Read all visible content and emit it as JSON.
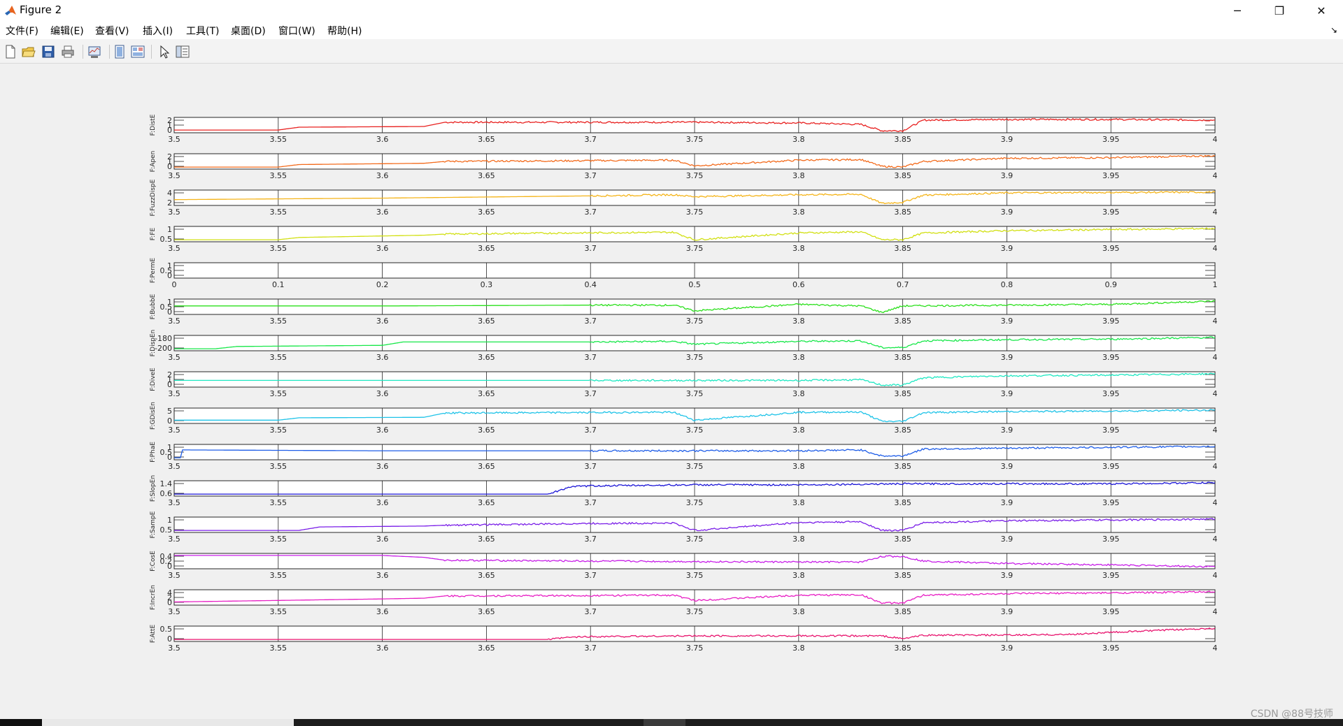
{
  "window": {
    "title": "Figure 2",
    "minimize_glyph": "─",
    "restore_glyph": "❐",
    "close_glyph": "✕",
    "app_icon": "matlab-logo-icon"
  },
  "menu": {
    "items": [
      "文件(F)",
      "编辑(E)",
      "查看(V)",
      "插入(I)",
      "工具(T)",
      "桌面(D)",
      "窗口(W)",
      "帮助(H)"
    ],
    "extra_glyph": "↘"
  },
  "toolbar": {
    "tools": [
      "new-figure-icon",
      "open-file-icon",
      "save-icon",
      "print-icon",
      "link-plot-icon",
      "hide-plot-tools-icon",
      "show-plot-tools-icon",
      "edit-plot-cursor-icon",
      "property-inspector-icon"
    ]
  },
  "colors": {
    "figure_bg": "#f0f0f0",
    "axes_bg": "#ffffff"
  },
  "watermark": "CSDN @88号技师",
  "chart_data": [
    {
      "type": "line",
      "ylabel": "F:DistE",
      "yticks": [
        "2",
        "1",
        "0"
      ],
      "color": "#e8201f",
      "xlim": [
        3.5,
        4
      ],
      "xticks": [
        "3.5",
        "3.55",
        "3.6",
        "3.65",
        "3.7",
        "3.75",
        "3.8",
        "3.85",
        "3.9",
        "3.95",
        "4"
      ],
      "series": [
        {
          "x": [
            3.5,
            3.55,
            3.56,
            3.62,
            3.63,
            3.7,
            3.75,
            3.8,
            3.83,
            3.84,
            3.85,
            3.86,
            3.9,
            3.95,
            4.0
          ],
          "y": [
            0.2,
            0.2,
            0.6,
            0.7,
            1.3,
            1.3,
            1.3,
            1.2,
            1.0,
            0.1,
            0.1,
            1.6,
            1.7,
            1.7,
            1.6
          ]
        }
      ]
    },
    {
      "type": "line",
      "ylabel": "F:Apen",
      "yticks": [
        "2",
        "1",
        "0"
      ],
      "color": "#f36b1c",
      "xlim": [
        3.5,
        4
      ],
      "xticks": [
        "3.5",
        "3.55",
        "3.6",
        "3.65",
        "3.7",
        "3.75",
        "3.8",
        "3.85",
        "3.9",
        "3.95",
        "4"
      ],
      "series": [
        {
          "x": [
            3.5,
            3.55,
            3.56,
            3.62,
            3.63,
            3.69,
            3.74,
            3.75,
            3.8,
            3.83,
            3.84,
            3.85,
            3.86,
            3.9,
            3.95,
            4.0
          ],
          "y": [
            0.1,
            0.1,
            0.5,
            0.7,
            1.0,
            1.1,
            1.2,
            0.3,
            1.2,
            1.3,
            0.2,
            0.1,
            1.0,
            1.5,
            1.6,
            1.9
          ]
        }
      ]
    },
    {
      "type": "line",
      "ylabel": "F:FuzzDispE",
      "yticks": [
        "4",
        "2"
      ],
      "color": "#f5b418",
      "xlim": [
        3.5,
        4
      ],
      "xticks": [
        "3.5",
        "3.55",
        "3.6",
        "3.65",
        "3.7",
        "3.75",
        "3.8",
        "3.85",
        "3.9",
        "3.95",
        "4"
      ],
      "series": [
        {
          "x": [
            3.5,
            3.6,
            3.7,
            3.74,
            3.75,
            3.8,
            3.83,
            3.84,
            3.85,
            3.86,
            3.9,
            3.95,
            4.0
          ],
          "y": [
            2.2,
            2.6,
            3.2,
            3.5,
            3.0,
            3.5,
            3.6,
            1.2,
            1.5,
            3.4,
            4.0,
            4.1,
            4.2
          ]
        }
      ]
    },
    {
      "type": "line",
      "ylabel": "F:FE",
      "yticks": [
        "1",
        "0.5"
      ],
      "color": "#d2e014",
      "xlim": [
        3.5,
        4
      ],
      "xticks": [
        "3.5",
        "3.55",
        "3.6",
        "3.65",
        "3.7",
        "3.75",
        "3.8",
        "3.85",
        "3.9",
        "3.95",
        "4"
      ],
      "series": [
        {
          "x": [
            3.5,
            3.55,
            3.56,
            3.62,
            3.63,
            3.69,
            3.74,
            3.75,
            3.8,
            3.83,
            3.84,
            3.85,
            3.86,
            3.9,
            3.95,
            4.0
          ],
          "y": [
            0.45,
            0.45,
            0.55,
            0.65,
            0.7,
            0.75,
            0.78,
            0.45,
            0.75,
            0.8,
            0.45,
            0.45,
            0.75,
            0.85,
            0.9,
            0.95
          ]
        }
      ]
    },
    {
      "type": "line",
      "ylabel": "F:PermE",
      "yticks": [
        "1",
        "0.5",
        "0"
      ],
      "color": "#000000",
      "xlim": [
        0,
        1
      ],
      "xticks": [
        "0",
        "0.1",
        "0.2",
        "0.3",
        "0.4",
        "0.5",
        "0.6",
        "0.7",
        "0.8",
        "0.9",
        "1"
      ],
      "series": []
    },
    {
      "type": "line",
      "ylabel": "F:BubbE",
      "yticks": [
        "1",
        "0.5",
        "0"
      ],
      "color": "#2be01c",
      "xlim": [
        3.5,
        4
      ],
      "xticks": [
        "3.5",
        "3.55",
        "3.6",
        "3.65",
        "3.7",
        "3.75",
        "3.8",
        "3.85",
        "3.9",
        "3.95",
        "4"
      ],
      "series": [
        {
          "x": [
            3.5,
            3.6,
            3.7,
            3.74,
            3.75,
            3.8,
            3.83,
            3.84,
            3.85,
            3.9,
            3.95,
            4.0
          ],
          "y": [
            0.6,
            0.6,
            0.65,
            0.65,
            0.3,
            0.7,
            0.6,
            0.2,
            0.6,
            0.65,
            0.7,
            0.9
          ]
        }
      ]
    },
    {
      "type": "line",
      "ylabel": "F:DispEn",
      "yticks": [
        "-180",
        "-200"
      ],
      "color": "#18e84a",
      "xlim": [
        3.5,
        4
      ],
      "xticks": [
        "3.5",
        "3.55",
        "3.6",
        "3.65",
        "3.7",
        "3.75",
        "3.8",
        "3.85",
        "3.9",
        "3.95",
        "4"
      ],
      "series": [
        {
          "x": [
            3.5,
            3.52,
            3.53,
            3.6,
            3.61,
            3.7,
            3.74,
            3.75,
            3.8,
            3.83,
            3.84,
            3.85,
            3.86,
            3.9,
            3.95,
            4.0
          ],
          "y": [
            -202,
            -202,
            -198,
            -196,
            -190,
            -190,
            -189,
            -194,
            -189,
            -188,
            -200,
            -200,
            -188,
            -186,
            -185,
            -182
          ]
        }
      ]
    },
    {
      "type": "line",
      "ylabel": "F:DiveE",
      "yticks": [
        "2",
        "1",
        "0"
      ],
      "color": "#1ee8c2",
      "xlim": [
        3.5,
        4
      ],
      "xticks": [
        "3.5",
        "3.55",
        "3.6",
        "3.65",
        "3.7",
        "3.75",
        "3.8",
        "3.85",
        "3.9",
        "3.95",
        "4"
      ],
      "series": [
        {
          "x": [
            3.5,
            3.6,
            3.7,
            3.8,
            3.83,
            3.84,
            3.85,
            3.86,
            3.9,
            3.95,
            4.0
          ],
          "y": [
            0.8,
            0.8,
            0.8,
            0.8,
            0.9,
            0.1,
            0.1,
            1.2,
            1.5,
            1.6,
            1.8
          ]
        }
      ]
    },
    {
      "type": "line",
      "ylabel": "F:GDisEn",
      "yticks": [
        "5",
        "0"
      ],
      "color": "#1ec3e8",
      "xlim": [
        3.5,
        4
      ],
      "xticks": [
        "3.5",
        "3.55",
        "3.6",
        "3.65",
        "3.7",
        "3.75",
        "3.8",
        "3.85",
        "3.9",
        "3.95",
        "4"
      ],
      "series": [
        {
          "x": [
            3.5,
            3.55,
            3.56,
            3.62,
            3.63,
            3.7,
            3.74,
            3.75,
            3.8,
            3.83,
            3.84,
            3.85,
            3.86,
            3.9,
            3.95,
            4.0
          ],
          "y": [
            1.0,
            1.0,
            2.0,
            2.2,
            4.0,
            4.2,
            4.3,
            1.0,
            4.3,
            4.4,
            0.5,
            0.5,
            4.2,
            4.6,
            4.8,
            5.2
          ]
        }
      ]
    },
    {
      "type": "line",
      "ylabel": "F:PhaE",
      "yticks": [
        "1",
        "0.5",
        "0"
      ],
      "color": "#1e5de8",
      "xlim": [
        3.5,
        4
      ],
      "xticks": [
        "3.5",
        "3.55",
        "3.6",
        "3.65",
        "3.7",
        "3.75",
        "3.8",
        "3.85",
        "3.9",
        "3.95",
        "4"
      ],
      "series": [
        {
          "x": [
            3.5,
            3.503,
            3.504,
            3.6,
            3.7,
            3.8,
            3.83,
            3.84,
            3.85,
            3.86,
            3.9,
            3.95,
            4.0
          ],
          "y": [
            0.1,
            0.1,
            0.55,
            0.5,
            0.5,
            0.5,
            0.55,
            0.2,
            0.2,
            0.6,
            0.65,
            0.7,
            0.75
          ]
        }
      ]
    },
    {
      "type": "line",
      "ylabel": "F:SlopEn",
      "yticks": [
        "1.4",
        "0.6"
      ],
      "color": "#1a14d6",
      "xlim": [
        3.5,
        4
      ],
      "xticks": [
        "3.5",
        "3.55",
        "3.6",
        "3.65",
        "3.7",
        "3.75",
        "3.8",
        "3.85",
        "3.9",
        "3.95",
        "4"
      ],
      "series": [
        {
          "x": [
            3.5,
            3.6,
            3.68,
            3.69,
            3.7,
            3.75,
            3.8,
            3.85,
            3.9,
            3.95,
            4.0
          ],
          "y": [
            0.5,
            0.5,
            0.5,
            0.85,
            0.9,
            0.95,
            0.95,
            1.0,
            1.0,
            1.0,
            1.05
          ]
        }
      ]
    },
    {
      "type": "line",
      "ylabel": "F:SampE",
      "yticks": [
        "1",
        "0.5"
      ],
      "color": "#7a1ee8",
      "xlim": [
        3.5,
        4
      ],
      "xticks": [
        "3.5",
        "3.55",
        "3.6",
        "3.65",
        "3.7",
        "3.75",
        "3.8",
        "3.85",
        "3.9",
        "3.95",
        "4"
      ],
      "series": [
        {
          "x": [
            3.5,
            3.56,
            3.57,
            3.62,
            3.63,
            3.7,
            3.74,
            3.75,
            3.8,
            3.83,
            3.84,
            3.85,
            3.86,
            3.9,
            3.95,
            4.0
          ],
          "y": [
            0.3,
            0.3,
            0.5,
            0.55,
            0.6,
            0.7,
            0.72,
            0.3,
            0.75,
            0.8,
            0.3,
            0.3,
            0.75,
            0.85,
            0.9,
            0.95
          ]
        }
      ]
    },
    {
      "type": "line",
      "ylabel": "F:CosE",
      "yticks": [
        "0.4",
        "0.2",
        "0"
      ],
      "color": "#c81ee8",
      "xlim": [
        3.5,
        4
      ],
      "xticks": [
        "3.5",
        "3.55",
        "3.6",
        "3.65",
        "3.7",
        "3.75",
        "3.8",
        "3.85",
        "3.9",
        "3.95",
        "4"
      ],
      "series": [
        {
          "x": [
            3.5,
            3.6,
            3.62,
            3.63,
            3.7,
            3.8,
            3.83,
            3.84,
            3.85,
            3.86,
            3.9,
            3.95,
            4.0
          ],
          "y": [
            0.42,
            0.42,
            0.38,
            0.32,
            0.3,
            0.28,
            0.28,
            0.4,
            0.4,
            0.3,
            0.25,
            0.22,
            0.18
          ]
        }
      ]
    },
    {
      "type": "line",
      "ylabel": "F:IncrEn",
      "yticks": [
        "4",
        "2",
        "0"
      ],
      "color": "#e81ec4",
      "xlim": [
        3.5,
        4
      ],
      "xticks": [
        "3.5",
        "3.55",
        "3.6",
        "3.65",
        "3.7",
        "3.75",
        "3.8",
        "3.85",
        "3.9",
        "3.95",
        "4"
      ],
      "series": [
        {
          "x": [
            3.5,
            3.6,
            3.62,
            3.63,
            3.7,
            3.74,
            3.75,
            3.8,
            3.83,
            3.84,
            3.85,
            3.86,
            3.9,
            3.95,
            4.0
          ],
          "y": [
            0.6,
            1.4,
            1.6,
            2.2,
            2.3,
            2.4,
            1.0,
            2.4,
            2.5,
            0.3,
            0.3,
            2.4,
            2.8,
            3.0,
            3.3
          ]
        }
      ]
    },
    {
      "type": "line",
      "ylabel": "F:AttE",
      "yticks": [
        "0.5",
        "0"
      ],
      "color": "#e8146e",
      "xlim": [
        3.5,
        4
      ],
      "xticks": [
        "3.5",
        "3.55",
        "3.6",
        "3.65",
        "3.7",
        "3.75",
        "3.8",
        "3.85",
        "3.9",
        "3.95",
        "4"
      ],
      "series": [
        {
          "x": [
            3.5,
            3.6,
            3.68,
            3.69,
            3.7,
            3.75,
            3.8,
            3.84,
            3.85,
            3.86,
            3.9,
            3.93,
            3.95,
            4.0
          ],
          "y": [
            0.0,
            0.0,
            0.0,
            0.15,
            0.2,
            0.25,
            0.25,
            0.25,
            0.05,
            0.3,
            0.3,
            0.35,
            0.5,
            0.8
          ]
        }
      ]
    }
  ]
}
